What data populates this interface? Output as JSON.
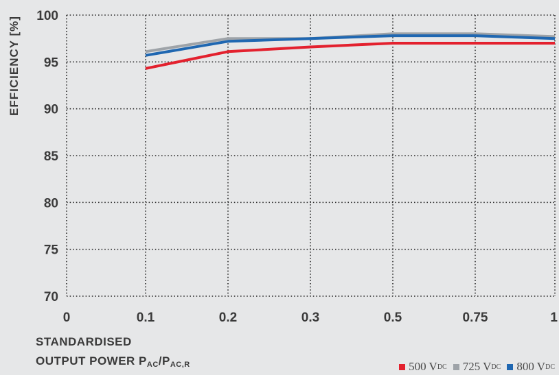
{
  "chart_data": {
    "type": "line",
    "title": "",
    "ylabel": "EFFICIENCY [%]",
    "xlabel": {
      "line1": "STANDARDISED",
      "line2_prefix": "OUTPUT POWER P",
      "line2_sub1": "AC",
      "line2_mid": "/P",
      "line2_sub2": "AC,R"
    },
    "categories": [
      "0",
      "0.1",
      "0.2",
      "0.3",
      "0.5",
      "0.75",
      "1"
    ],
    "ylim": [
      70,
      100
    ],
    "yticks": [
      "70",
      "75",
      "80",
      "85",
      "90",
      "95",
      "100"
    ],
    "grid": "dotted",
    "legend_position": "bottom-right",
    "series": [
      {
        "name": "500 V",
        "name_sub": "DC",
        "color": "#e3212e",
        "values": [
          null,
          94.3,
          96.1,
          96.6,
          97.0,
          97.0,
          97.0
        ]
      },
      {
        "name": "725 V",
        "name_sub": "DC",
        "color": "#9ea3a8",
        "values": [
          null,
          96.1,
          97.5,
          97.5,
          98.0,
          98.0,
          97.7
        ]
      },
      {
        "name": "800 V",
        "name_sub": "DC",
        "color": "#1f67b1",
        "values": [
          null,
          95.7,
          97.2,
          97.5,
          97.8,
          97.8,
          97.5
        ]
      }
    ]
  }
}
